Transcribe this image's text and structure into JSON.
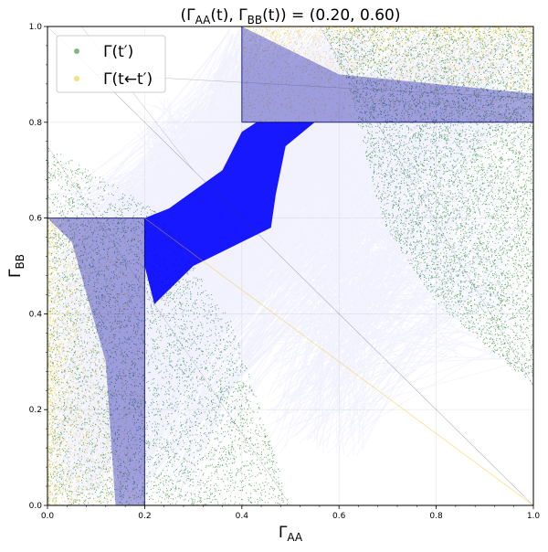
{
  "chart_data": {
    "type": "scatter",
    "title": "(Γ_AA(t), Γ_BB(t)) = (0.20, 0.60)",
    "xlabel": "Γ_AA",
    "ylabel": "Γ_BB",
    "xlim": [
      0.0,
      1.0
    ],
    "ylim": [
      0.0,
      1.0
    ],
    "xticks": [
      "0.0",
      "0.2",
      "0.4",
      "0.6",
      "0.8",
      "1.0"
    ],
    "yticks": [
      "0.0",
      "0.2",
      "0.4",
      "0.6",
      "0.8",
      "1.0"
    ],
    "grid": true,
    "legend_position": "top-left",
    "current_point": {
      "x": 0.2,
      "y": 0.6
    },
    "series": [
      {
        "name": "Γ(t′)",
        "color": "#2e8b2e",
        "marker": "point"
      },
      {
        "name": "Γ(t←t′)",
        "color": "#f2c200",
        "marker": "point"
      },
      {
        "color": "#0000ff",
        "marker": "line-segments"
      }
    ],
    "regions": {
      "green_upper_right": {
        "corner": [
          1.0,
          1.0
        ],
        "boundary": [
          [
            0.56,
            1.0
          ],
          [
            0.62,
            0.87
          ],
          [
            0.69,
            0.59
          ],
          [
            0.8,
            0.42
          ],
          [
            1.0,
            0.25
          ]
        ]
      },
      "green_lower_left": {
        "boundary": [
          [
            0.0,
            0.75
          ],
          [
            0.22,
            0.62
          ],
          [
            0.38,
            0.38
          ],
          [
            0.5,
            0.0
          ]
        ]
      },
      "yellow_box_lower_left": {
        "x": [
          0.0,
          0.2
        ],
        "y": [
          0.0,
          0.6
        ]
      },
      "yellow_box_upper_right": {
        "x": [
          0.4,
          1.0
        ],
        "y": [
          0.8,
          1.0
        ]
      }
    }
  }
}
